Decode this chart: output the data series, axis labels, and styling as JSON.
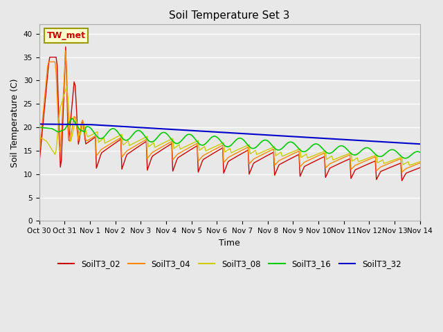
{
  "title": "Soil Temperature Set 3",
  "xlabel": "Time",
  "ylabel": "Soil Temperature (C)",
  "ylim": [
    0,
    42
  ],
  "yticks": [
    0,
    5,
    10,
    15,
    20,
    25,
    30,
    35,
    40
  ],
  "series_colors": {
    "SoilT3_02": "#cc0000",
    "SoilT3_04": "#ff8800",
    "SoilT3_08": "#cccc00",
    "SoilT3_16": "#00cc00",
    "SoilT3_32": "#0000cc"
  },
  "annotation_text": "TW_met",
  "annotation_color": "#cc0000",
  "annotation_bg": "#ffffcc",
  "annotation_border": "#999900",
  "fig_bg": "#e8e8e8",
  "plot_bg": "#e8e8e8",
  "tick_labels": [
    "Oct 30",
    "Oct 31",
    "Nov 1",
    "Nov 2",
    "Nov 3",
    "Nov 4",
    "Nov 5",
    "Nov 6",
    "Nov 7",
    "Nov 8",
    "Nov 9",
    "Nov 10",
    "Nov 11",
    "Nov 12",
    "Nov 13",
    "Nov 14"
  ],
  "xlim": [
    0,
    15
  ]
}
